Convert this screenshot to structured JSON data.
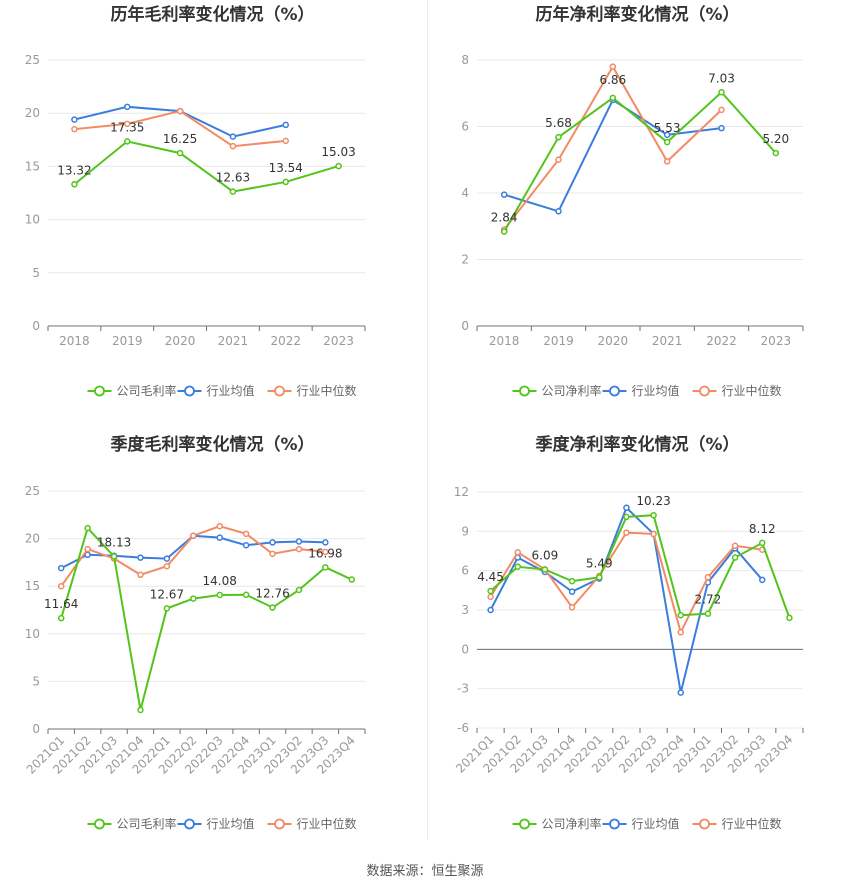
{
  "source_text": "数据来源：恒生聚源",
  "colors": {
    "company": "#52c41a",
    "industry_avg": "#3b7ddd",
    "industry_median": "#f28b65"
  },
  "chart_data": [
    {
      "type": "line",
      "title": "历年毛利率变化情况（%）",
      "categories": [
        "2018",
        "2019",
        "2020",
        "2021",
        "2022",
        "2023"
      ],
      "ylim": [
        0,
        25
      ],
      "yticks": [
        0,
        5,
        10,
        15,
        20,
        25
      ],
      "grid": true,
      "legend_position": "bottom",
      "series": [
        {
          "name": "公司毛利率",
          "values": [
            13.32,
            17.35,
            16.25,
            12.63,
            13.54,
            15.03
          ],
          "labels": [
            "13.32",
            "17.35",
            "16.25",
            "12.63",
            "13.54",
            "15.03"
          ]
        },
        {
          "name": "行业均值",
          "values": [
            19.4,
            20.6,
            20.2,
            17.8,
            18.9,
            null
          ]
        },
        {
          "name": "行业中位数",
          "values": [
            18.5,
            19.0,
            20.2,
            16.9,
            17.4,
            null
          ]
        }
      ]
    },
    {
      "type": "line",
      "title": "历年净利率变化情况（%）",
      "categories": [
        "2018",
        "2019",
        "2020",
        "2021",
        "2022",
        "2023"
      ],
      "ylim": [
        0,
        8
      ],
      "yticks": [
        0,
        2,
        4,
        6,
        8
      ],
      "grid": true,
      "legend_position": "bottom",
      "series": [
        {
          "name": "公司净利率",
          "values": [
            2.84,
            5.68,
            6.86,
            5.53,
            7.03,
            5.2
          ],
          "labels": [
            "2.84",
            "5.68",
            "6.86",
            "5.53",
            "7.03",
            "5.20"
          ]
        },
        {
          "name": "行业均值",
          "values": [
            3.95,
            3.45,
            6.8,
            5.75,
            5.95,
            null
          ]
        },
        {
          "name": "行业中位数",
          "values": [
            2.9,
            5.0,
            7.8,
            4.95,
            6.5,
            null
          ]
        }
      ]
    },
    {
      "type": "line",
      "title": "季度毛利率变化情况（%）",
      "categories": [
        "2021Q1",
        "2021Q2",
        "2021Q3",
        "2021Q4",
        "2022Q1",
        "2022Q2",
        "2022Q3",
        "2022Q4",
        "2023Q1",
        "2023Q2",
        "2023Q3",
        "2023Q4"
      ],
      "ylim": [
        0,
        25
      ],
      "yticks": [
        0,
        5,
        10,
        15,
        20,
        25
      ],
      "grid": true,
      "legend_position": "bottom",
      "series": [
        {
          "name": "公司毛利率",
          "values": [
            11.64,
            21.1,
            18.13,
            2.0,
            12.67,
            13.7,
            14.08,
            14.1,
            12.76,
            14.6,
            16.98,
            15.7
          ],
          "labels": [
            "11.64",
            null,
            "18.13",
            null,
            "12.67",
            null,
            "14.08",
            null,
            "12.76",
            null,
            "16.98",
            null
          ]
        },
        {
          "name": "行业均值",
          "values": [
            16.9,
            18.3,
            18.2,
            18.0,
            17.9,
            20.3,
            20.1,
            19.3,
            19.6,
            19.7,
            19.6,
            null
          ]
        },
        {
          "name": "行业中位数",
          "values": [
            15.0,
            18.9,
            17.9,
            16.2,
            17.1,
            20.3,
            21.3,
            20.5,
            18.4,
            18.9,
            18.6,
            null
          ]
        }
      ]
    },
    {
      "type": "line",
      "title": "季度净利率变化情况（%）",
      "categories": [
        "2021Q1",
        "2021Q2",
        "2021Q3",
        "2021Q4",
        "2022Q1",
        "2022Q2",
        "2022Q3",
        "2022Q4",
        "2023Q1",
        "2023Q2",
        "2023Q3",
        "2023Q4"
      ],
      "ylim": [
        -6,
        12
      ],
      "yticks": [
        -6,
        -3,
        0,
        3,
        6,
        9,
        12
      ],
      "grid": true,
      "legend_position": "bottom",
      "series": [
        {
          "name": "公司净利率",
          "values": [
            4.45,
            6.3,
            6.09,
            5.2,
            5.49,
            10.1,
            10.23,
            2.6,
            2.72,
            7.0,
            8.12,
            2.4
          ],
          "labels": [
            "4.45",
            null,
            "6.09",
            null,
            "5.49",
            null,
            "10.23",
            null,
            "2.72",
            null,
            "8.12",
            null
          ]
        },
        {
          "name": "行业均值",
          "values": [
            3.0,
            7.0,
            5.9,
            4.4,
            5.4,
            10.8,
            8.8,
            -3.3,
            5.1,
            7.7,
            5.3,
            null
          ]
        },
        {
          "name": "行业中位数",
          "values": [
            4.0,
            7.4,
            6.1,
            3.2,
            5.6,
            8.9,
            8.8,
            1.3,
            5.5,
            7.9,
            7.6,
            null
          ]
        }
      ]
    }
  ]
}
